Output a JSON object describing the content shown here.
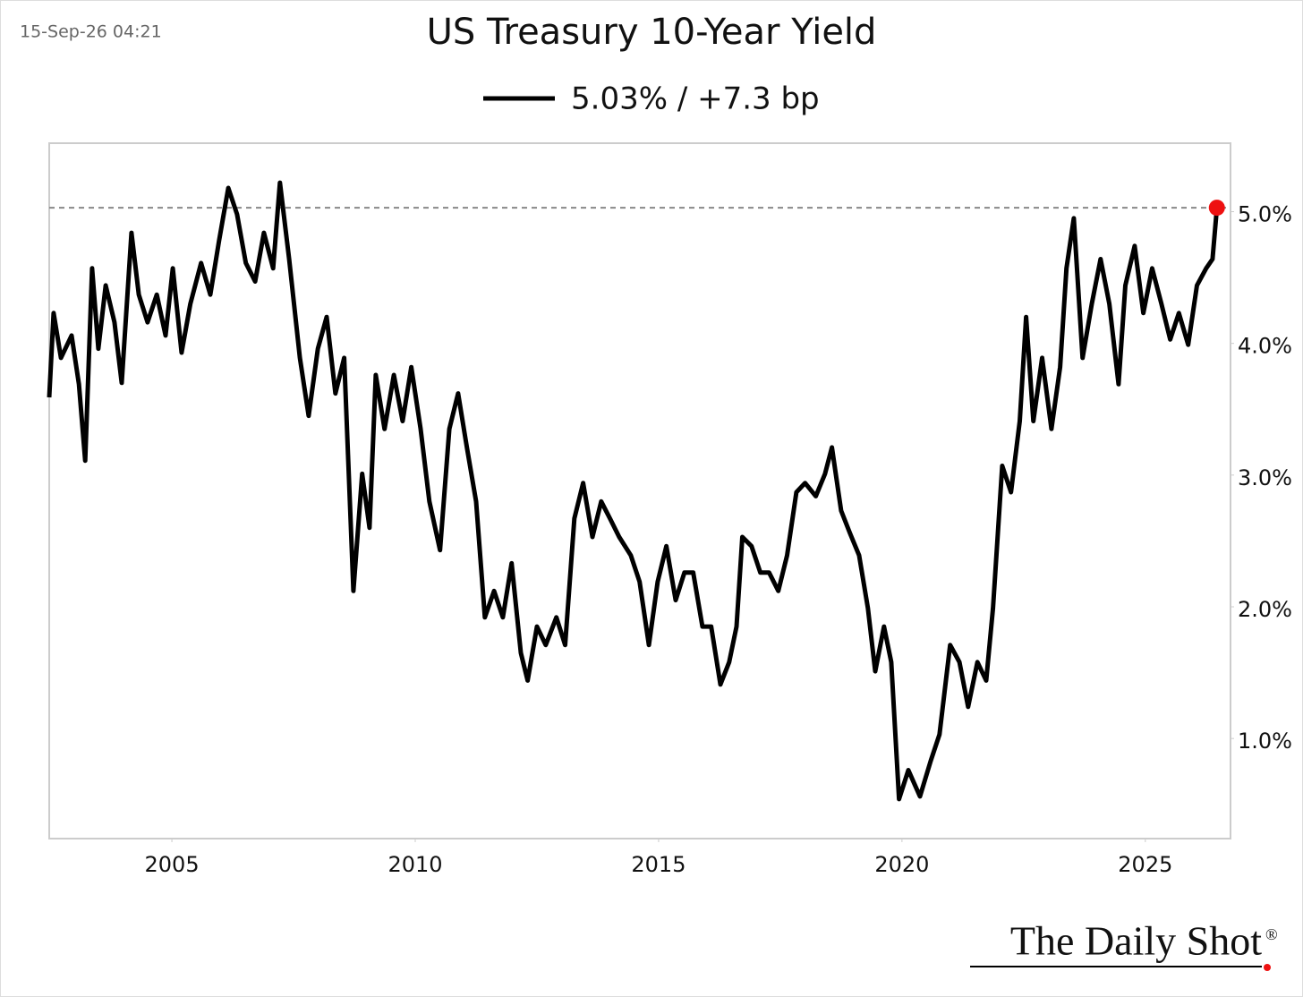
{
  "timestamp": "15-Sep-26 04:21",
  "logo": "The Daily Shot",
  "logo_mark": "®",
  "chart_data": {
    "type": "line",
    "title": "US Treasury 10-Year Yield",
    "series": [
      {
        "name": "5.03% / +7.3 bp",
        "color": "#000000",
        "x": [
          2002.48,
          2002.57,
          2002.72,
          2002.94,
          2003.09,
          2003.22,
          2003.36,
          2003.49,
          2003.64,
          2003.82,
          2003.97,
          2004.17,
          2004.32,
          2004.5,
          2004.69,
          2004.87,
          2005.02,
          2005.2,
          2005.38,
          2005.6,
          2005.79,
          2005.97,
          2006.16,
          2006.34,
          2006.52,
          2006.71,
          2006.89,
          2007.08,
          2007.22,
          2007.41,
          2007.63,
          2007.81,
          2008.0,
          2008.18,
          2008.36,
          2008.54,
          2008.73,
          2008.91,
          2009.06,
          2009.19,
          2009.37,
          2009.56,
          2009.74,
          2009.92,
          2010.11,
          2010.29,
          2010.51,
          2010.7,
          2010.88,
          2011.06,
          2011.25,
          2011.43,
          2011.62,
          2011.8,
          2011.98,
          2012.17,
          2012.31,
          2012.5,
          2012.68,
          2012.9,
          2013.08,
          2013.27,
          2013.45,
          2013.64,
          2013.82,
          2014.0,
          2014.19,
          2014.43,
          2014.61,
          2014.8,
          2014.98,
          2015.16,
          2015.35,
          2015.53,
          2015.71,
          2015.9,
          2016.08,
          2016.27,
          2016.45,
          2016.6,
          2016.72,
          2016.91,
          2017.09,
          2017.27,
          2017.46,
          2017.64,
          2017.83,
          2018.01,
          2018.23,
          2018.42,
          2018.56,
          2018.75,
          2018.93,
          2019.12,
          2019.3,
          2019.45,
          2019.63,
          2019.78,
          2019.94,
          2020.13,
          2020.37,
          2020.59,
          2020.77,
          2020.99,
          2021.18,
          2021.36,
          2021.55,
          2021.73,
          2021.87,
          2022.06,
          2022.24,
          2022.42,
          2022.55,
          2022.7,
          2022.88,
          2023.07,
          2023.25,
          2023.38,
          2023.53,
          2023.71,
          2023.9,
          2024.08,
          2024.26,
          2024.45,
          2024.59,
          2024.78,
          2024.96,
          2025.14,
          2025.33,
          2025.51,
          2025.69,
          2025.88,
          2026.06,
          2026.25,
          2026.38,
          2026.47
        ],
        "values": [
          3.59,
          4.23,
          3.89,
          4.06,
          3.69,
          3.11,
          4.57,
          3.96,
          4.44,
          4.16,
          3.7,
          4.84,
          4.37,
          4.16,
          4.37,
          4.06,
          4.57,
          3.93,
          4.3,
          4.61,
          4.37,
          4.78,
          5.18,
          4.98,
          4.61,
          4.47,
          4.84,
          4.57,
          5.22,
          4.64,
          3.89,
          3.45,
          3.96,
          4.2,
          3.62,
          3.89,
          2.12,
          3.01,
          2.6,
          3.76,
          3.35,
          3.76,
          3.41,
          3.82,
          3.35,
          2.8,
          2.43,
          3.35,
          3.62,
          3.21,
          2.8,
          1.92,
          2.12,
          1.92,
          2.33,
          1.65,
          1.44,
          1.85,
          1.71,
          1.92,
          1.71,
          2.67,
          2.94,
          2.53,
          2.8,
          2.67,
          2.53,
          2.39,
          2.19,
          1.71,
          2.19,
          2.46,
          2.05,
          2.26,
          2.26,
          1.85,
          1.85,
          1.41,
          1.58,
          1.85,
          2.53,
          2.46,
          2.26,
          2.26,
          2.12,
          2.39,
          2.87,
          2.94,
          2.84,
          3.01,
          3.21,
          2.73,
          2.56,
          2.39,
          1.99,
          1.51,
          1.85,
          1.58,
          0.54,
          0.76,
          0.56,
          0.83,
          1.03,
          1.71,
          1.58,
          1.24,
          1.58,
          1.44,
          1.99,
          3.07,
          2.87,
          3.41,
          4.2,
          3.41,
          3.89,
          3.35,
          3.82,
          4.57,
          4.95,
          3.89,
          4.3,
          4.64,
          4.3,
          3.69,
          4.44,
          4.74,
          4.23,
          4.57,
          4.3,
          4.03,
          4.23,
          3.99,
          4.44,
          4.57,
          4.64,
          5.03
        ]
      }
    ],
    "highlight_color": "#ee1111",
    "xlim": [
      2002.48,
      2026.75
    ],
    "xticks": [
      2005,
      2010,
      2015,
      2020,
      2025
    ],
    "ylim": [
      0.24,
      5.52
    ],
    "yticks": [
      {
        "value": 1,
        "label": "1.0%"
      },
      {
        "value": 2,
        "label": "2.0%"
      },
      {
        "value": 3,
        "label": "3.0%"
      },
      {
        "value": 4,
        "label": "4.0%"
      },
      {
        "value": 5,
        "label": "5.0%"
      }
    ],
    "grid": false
  }
}
